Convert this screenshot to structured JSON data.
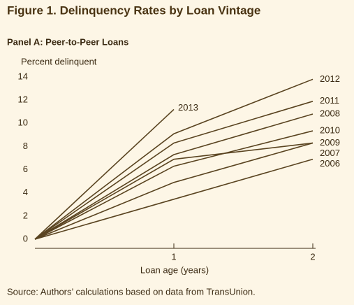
{
  "chart_data": {
    "type": "line",
    "title": "Figure 1. Delinquency Rates by Loan Vintage",
    "subtitle": "Panel A: Peer-to-Peer Loans",
    "ylabel": "Percent delinquent",
    "xlabel": "Loan age (years)",
    "source": "Source: Authors’ calculations based on data from TransUnion.",
    "x": [
      0,
      1,
      2
    ],
    "xlim": [
      0,
      2
    ],
    "xticks": [
      1,
      2
    ],
    "ylim": [
      0,
      14
    ],
    "yticks": [
      0,
      2,
      4,
      6,
      8,
      10,
      12,
      14
    ],
    "series": [
      {
        "name": "2012",
        "color": "#5a4421",
        "values": [
          0,
          9.1,
          13.8
        ]
      },
      {
        "name": "2013",
        "color": "#5a4421",
        "values": [
          0,
          11.2,
          null
        ]
      },
      {
        "name": "2011",
        "color": "#5a4421",
        "values": [
          0,
          8.3,
          11.9
        ]
      },
      {
        "name": "2008",
        "color": "#5a4421",
        "values": [
          0,
          7.3,
          10.8
        ]
      },
      {
        "name": "2010",
        "color": "#5a4421",
        "values": [
          0,
          6.3,
          9.35
        ]
      },
      {
        "name": "2009",
        "color": "#5a4421",
        "values": [
          0,
          6.9,
          8.3
        ]
      },
      {
        "name": "2007",
        "color": "#5a4421",
        "values": [
          0,
          4.9,
          8.3
        ]
      },
      {
        "name": "2006",
        "color": "#5a4421",
        "values": [
          0,
          3.45,
          6.9
        ]
      }
    ]
  }
}
